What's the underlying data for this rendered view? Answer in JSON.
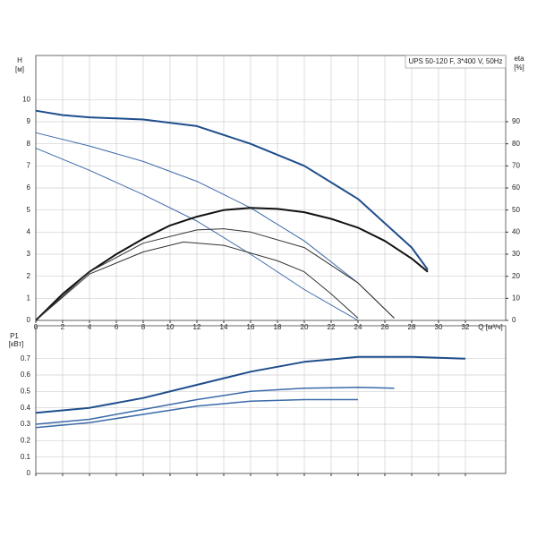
{
  "chart_data": [
    {
      "type": "line",
      "title": "UPS 50-120 F, 3*400 V, 50Hz",
      "x_label": "Q [м³/ч]",
      "y_label": "H",
      "y_unit": "[м]",
      "y2_label": "eta",
      "y2_unit": "[%]",
      "xlim": [
        0,
        35
      ],
      "ylim": [
        0,
        12
      ],
      "y2lim": [
        0,
        120
      ],
      "xticks": [
        0,
        2,
        4,
        6,
        8,
        10,
        12,
        14,
        16,
        18,
        20,
        22,
        24,
        26,
        28,
        30,
        32
      ],
      "yticks": [
        0,
        1,
        2,
        3,
        4,
        5,
        6,
        7,
        8,
        9,
        10
      ],
      "y2ticks": [
        0,
        10,
        20,
        30,
        40,
        50,
        60,
        70,
        80,
        90
      ],
      "grid": true,
      "series": [
        {
          "color": "#1f4e8c",
          "width": 2,
          "x": [
            0,
            2,
            4,
            8,
            12,
            16,
            20,
            24,
            28,
            29.2
          ],
          "values": [
            9.5,
            9.3,
            9.2,
            9.1,
            8.8,
            8.0,
            7.0,
            5.5,
            3.3,
            2.3
          ]
        },
        {
          "color": "#3a6aa8",
          "width": 1,
          "x": [
            0,
            4,
            8,
            12,
            16,
            20,
            24,
            26.7
          ],
          "values": [
            8.5,
            7.9,
            7.2,
            6.3,
            5.1,
            3.6,
            1.7,
            0.1
          ]
        },
        {
          "color": "#3a6aa8",
          "width": 1,
          "x": [
            0,
            4,
            8,
            12,
            16,
            20,
            24
          ],
          "values": [
            7.8,
            6.8,
            5.7,
            4.5,
            3.0,
            1.4,
            0
          ]
        },
        {
          "color": "#111111",
          "width": 2,
          "axis": "y2",
          "x": [
            0,
            2,
            4,
            6,
            8,
            10,
            12,
            14,
            16,
            18,
            20,
            22,
            24,
            26,
            28,
            29.2
          ],
          "values": [
            0,
            12,
            22,
            30,
            37,
            43,
            47,
            50,
            51,
            50.5,
            49,
            46,
            42,
            36,
            28,
            22
          ]
        },
        {
          "color": "#333333",
          "width": 1,
          "axis": "y2",
          "x": [
            0,
            4,
            8,
            12,
            14,
            16,
            20,
            24,
            26.7
          ],
          "values": [
            0,
            22,
            35,
            41,
            41.5,
            40,
            33,
            17,
            1
          ]
        },
        {
          "color": "#333333",
          "width": 1,
          "axis": "y2",
          "x": [
            0,
            4,
            8,
            11,
            14,
            18,
            20,
            22,
            24
          ],
          "values": [
            0,
            21,
            31,
            35.5,
            34,
            27,
            22,
            12,
            1
          ]
        }
      ]
    },
    {
      "type": "line",
      "y_label": "P1",
      "y_unit": "[кВт]",
      "xlim": [
        0,
        35
      ],
      "ylim": [
        0,
        0.9
      ],
      "xticks": [
        0,
        2,
        4,
        6,
        8,
        10,
        12,
        14,
        16,
        18,
        20,
        22,
        24,
        26,
        28,
        30,
        32
      ],
      "yticks": [
        0,
        0.1,
        0.2,
        0.3,
        0.4,
        0.5,
        0.6,
        0.7
      ],
      "grid": true,
      "series": [
        {
          "color": "#1f4e8c",
          "width": 2,
          "x": [
            0,
            4,
            8,
            12,
            16,
            20,
            24,
            28,
            32
          ],
          "values": [
            0.37,
            0.4,
            0.46,
            0.54,
            0.62,
            0.68,
            0.71,
            0.71,
            0.7
          ]
        },
        {
          "color": "#3a6aa8",
          "width": 1.5,
          "x": [
            0,
            4,
            8,
            12,
            16,
            20,
            24,
            26.7
          ],
          "values": [
            0.3,
            0.33,
            0.39,
            0.45,
            0.5,
            0.52,
            0.525,
            0.52
          ]
        },
        {
          "color": "#3a6aa8",
          "width": 1.5,
          "x": [
            0,
            4,
            8,
            12,
            16,
            20,
            24
          ],
          "values": [
            0.28,
            0.31,
            0.36,
            0.41,
            0.44,
            0.45,
            0.45
          ]
        }
      ]
    }
  ]
}
